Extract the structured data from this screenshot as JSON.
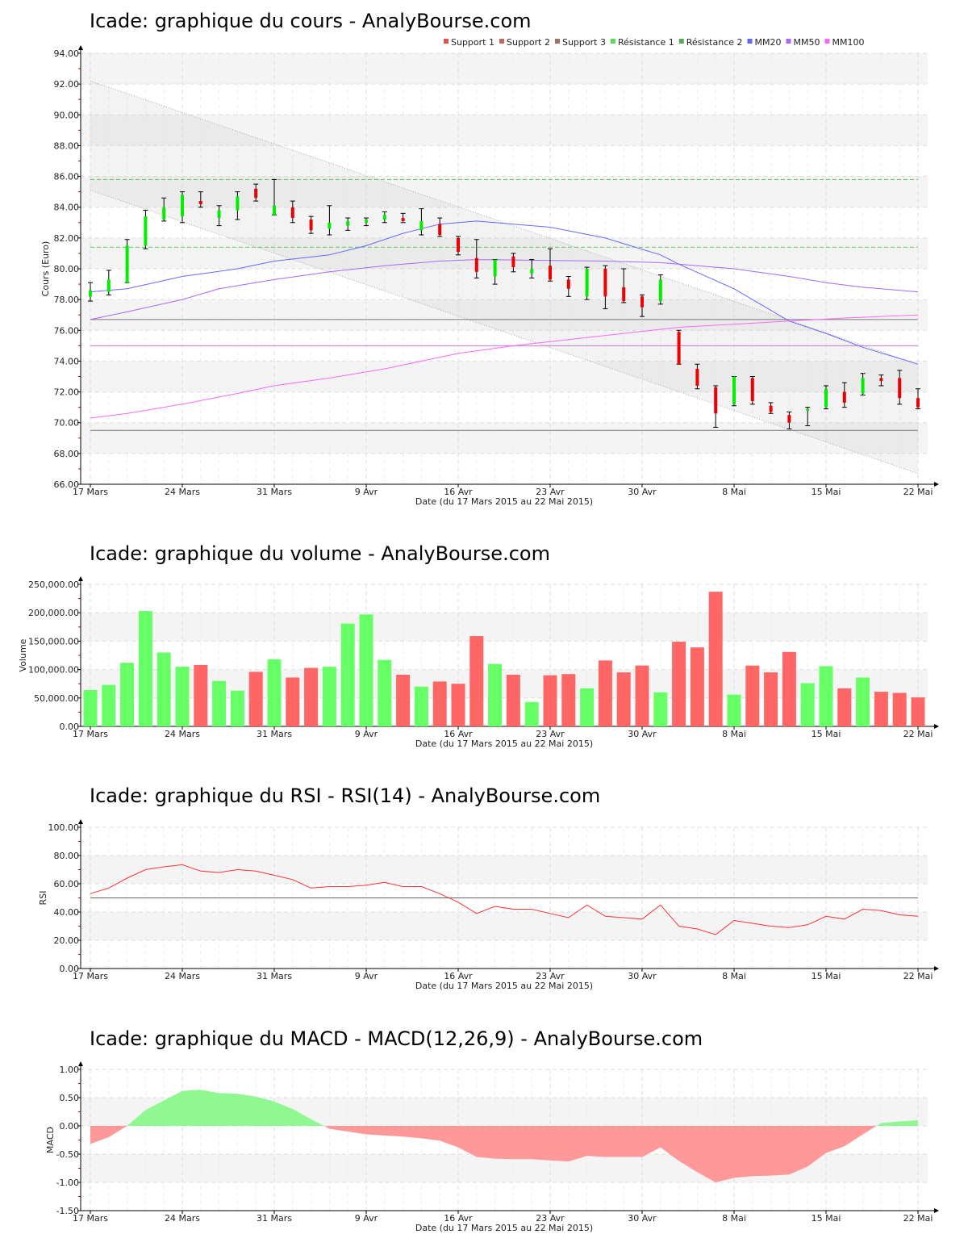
{
  "chart_data": [
    {
      "type": "candlestick",
      "title": "Icade: graphique du cours - AnalyBourse.com",
      "ylabel": "Cours (Euro)",
      "xlabel": "Date (du 17 Mars 2015 au 22 Mai 2015)",
      "ylim": [
        66,
        94
      ],
      "yticks": [
        "66.00",
        "68.00",
        "70.00",
        "72.00",
        "74.00",
        "76.00",
        "78.00",
        "80.00",
        "82.00",
        "84.00",
        "86.00",
        "88.00",
        "90.00",
        "92.00",
        "94.00"
      ],
      "legend_position": "top-right",
      "legend": [
        {
          "name": "Support 1",
          "color": "#d9534f"
        },
        {
          "name": "Support 2",
          "color": "#c0665f"
        },
        {
          "name": "Support 3",
          "color": "#a0706a"
        },
        {
          "name": "Résistance 1",
          "color": "#55dd55"
        },
        {
          "name": "Résistance 2",
          "color": "#55aa55"
        },
        {
          "name": "MM20",
          "color": "#6666ff"
        },
        {
          "name": "MM50",
          "color": "#aa66ff"
        },
        {
          "name": "MM100",
          "color": "#ff66ff"
        }
      ],
      "levels": {
        "support1": 69.5,
        "support2": 75.0,
        "support3": 76.7,
        "resistance1": 81.4,
        "resistance2": 85.8
      },
      "channel": {
        "upper": [
          92.2,
          73.8
        ],
        "lower": [
          85.1,
          66.7
        ]
      },
      "ohlc": [
        [
          78.2,
          78.6,
          79.1,
          77.9
        ],
        [
          78.5,
          79.3,
          79.9,
          78.3
        ],
        [
          79.1,
          81.5,
          81.9,
          79.1
        ],
        [
          81.5,
          83.4,
          83.8,
          81.3
        ],
        [
          83.2,
          84.0,
          84.6,
          83.1
        ],
        [
          83.4,
          84.8,
          85.0,
          83.0
        ],
        [
          84.4,
          84.2,
          85.0,
          84.0
        ],
        [
          83.3,
          83.8,
          84.1,
          82.8
        ],
        [
          83.8,
          84.7,
          85.0,
          83.2
        ],
        [
          85.2,
          84.6,
          85.5,
          84.4
        ],
        [
          83.5,
          84.1,
          85.8,
          83.5
        ],
        [
          84.0,
          83.3,
          84.4,
          83.0
        ],
        [
          83.2,
          82.5,
          83.4,
          82.3
        ],
        [
          82.6,
          83.0,
          84.1,
          82.2
        ],
        [
          82.8,
          83.1,
          83.3,
          82.5
        ],
        [
          83.0,
          83.2,
          83.3,
          82.8
        ],
        [
          83.2,
          83.5,
          83.7,
          83.0
        ],
        [
          83.3,
          83.1,
          83.6,
          83.0
        ],
        [
          82.5,
          83.1,
          83.9,
          82.2
        ],
        [
          82.9,
          82.2,
          83.3,
          82.1
        ],
        [
          82.0,
          81.1,
          82.1,
          80.9
        ],
        [
          80.7,
          79.8,
          81.9,
          79.4
        ],
        [
          79.5,
          80.6,
          80.6,
          79.0
        ],
        [
          80.8,
          80.1,
          81.0,
          79.8
        ],
        [
          79.7,
          80.0,
          80.6,
          79.4
        ],
        [
          80.2,
          79.3,
          81.3,
          79.2
        ],
        [
          79.3,
          78.7,
          79.5,
          78.2
        ],
        [
          78.2,
          80.0,
          80.1,
          78.0
        ],
        [
          80.0,
          78.2,
          80.2,
          77.4
        ],
        [
          78.8,
          77.9,
          80.0,
          77.8
        ],
        [
          78.2,
          77.5,
          78.3,
          76.9
        ],
        [
          77.9,
          79.3,
          79.6,
          77.7
        ],
        [
          75.9,
          73.8,
          76.0,
          73.8
        ],
        [
          73.5,
          72.4,
          73.8,
          72.2
        ],
        [
          72.3,
          70.6,
          72.4,
          69.7
        ],
        [
          71.2,
          73.0,
          73.0,
          71.1
        ],
        [
          72.9,
          71.4,
          73.0,
          71.2
        ],
        [
          71.1,
          70.7,
          71.3,
          70.6
        ],
        [
          70.5,
          70.0,
          70.7,
          69.6
        ],
        [
          70.8,
          70.9,
          71.0,
          69.8
        ],
        [
          71.0,
          72.2,
          72.4,
          70.9
        ],
        [
          72.0,
          71.3,
          72.6,
          71.0
        ],
        [
          71.9,
          72.9,
          73.2,
          71.8
        ],
        [
          72.9,
          72.7,
          73.1,
          72.4
        ],
        [
          72.9,
          71.6,
          73.4,
          71.2
        ],
        [
          71.6,
          71.0,
          72.2,
          70.9
        ]
      ],
      "mm20": [
        [
          0,
          78.5
        ],
        [
          2,
          78.7
        ],
        [
          5,
          79.5
        ],
        [
          8,
          80.0
        ],
        [
          10,
          80.5
        ],
        [
          13,
          80.9
        ],
        [
          15,
          81.5
        ],
        [
          17,
          82.3
        ],
        [
          19,
          82.9
        ],
        [
          21,
          83.1
        ],
        [
          25,
          82.7
        ],
        [
          28,
          82.0
        ],
        [
          31,
          80.9
        ],
        [
          32,
          80.3
        ],
        [
          35,
          78.7
        ],
        [
          38,
          76.6
        ],
        [
          40,
          75.8
        ],
        [
          42,
          74.9
        ],
        [
          45,
          73.8
        ]
      ],
      "mm50": [
        [
          0,
          76.7
        ],
        [
          2,
          77.2
        ],
        [
          5,
          78.0
        ],
        [
          7,
          78.7
        ],
        [
          10,
          79.3
        ],
        [
          13,
          79.8
        ],
        [
          16,
          80.2
        ],
        [
          19,
          80.5
        ],
        [
          21,
          80.6
        ],
        [
          28,
          80.5
        ],
        [
          31,
          80.4
        ],
        [
          35,
          80.0
        ],
        [
          38,
          79.5
        ],
        [
          40,
          79.1
        ],
        [
          42,
          78.8
        ],
        [
          45,
          78.5
        ]
      ],
      "mm100": [
        [
          0,
          70.3
        ],
        [
          2,
          70.6
        ],
        [
          5,
          71.2
        ],
        [
          8,
          71.9
        ],
        [
          10,
          72.4
        ],
        [
          13,
          72.9
        ],
        [
          16,
          73.5
        ],
        [
          18,
          74.0
        ],
        [
          20,
          74.5
        ],
        [
          23,
          75.0
        ],
        [
          26,
          75.4
        ],
        [
          29,
          75.8
        ],
        [
          32,
          76.2
        ],
        [
          35,
          76.4
        ],
        [
          38,
          76.6
        ],
        [
          41,
          76.8
        ],
        [
          45,
          77.0
        ]
      ]
    },
    {
      "type": "bar",
      "title": "Icade: graphique du volume - AnalyBourse.com",
      "ylabel": "Volume",
      "xlabel": "Date (du 17 Mars 2015 au 22 Mai 2015)",
      "ylim": [
        0,
        250000
      ],
      "yticks": [
        "0.00",
        "50,000.00",
        "100,000.00",
        "150,000.00",
        "200,000.00",
        "250,000.00"
      ],
      "values": [
        64000,
        73000,
        112000,
        203000,
        130000,
        105000,
        108000,
        80000,
        63000,
        96000,
        118000,
        86000,
        103000,
        105000,
        181000,
        197000,
        117000,
        91000,
        70000,
        79000,
        75000,
        159000,
        110000,
        91000,
        43000,
        90000,
        92000,
        67000,
        116000,
        95000,
        107000,
        60000,
        149000,
        139000,
        237000,
        56000,
        107000,
        95000,
        131000,
        76000,
        106000,
        67000,
        86000,
        61000,
        59000,
        51000
      ],
      "up": [
        1,
        1,
        1,
        1,
        1,
        1,
        0,
        1,
        1,
        0,
        1,
        0,
        0,
        1,
        1,
        1,
        1,
        0,
        1,
        0,
        0,
        0,
        1,
        0,
        1,
        0,
        0,
        1,
        0,
        0,
        0,
        1,
        0,
        0,
        0,
        1,
        0,
        0,
        0,
        1,
        1,
        0,
        1,
        0,
        0,
        0
      ],
      "colors": {
        "up": "#66ff66",
        "down": "#ff6666"
      }
    },
    {
      "type": "line",
      "title": "Icade: graphique du RSI - RSI(14) - AnalyBourse.com",
      "ylabel": "RSI",
      "xlabel": "Date (du 17 Mars 2015 au 22 Mai 2015)",
      "ylim": [
        0,
        100
      ],
      "yticks": [
        "0.00",
        "20.00",
        "40.00",
        "60.00",
        "80.00",
        "100.00"
      ],
      "reference": 50,
      "values": [
        53,
        57,
        64,
        70,
        72,
        73.5,
        69,
        68,
        70,
        69,
        66,
        63,
        57,
        58,
        58,
        59,
        61,
        58,
        58,
        53,
        47,
        39,
        44,
        42,
        42,
        39,
        36,
        45,
        37,
        36,
        35,
        45,
        30,
        28,
        24,
        34,
        32,
        30,
        29,
        31,
        37,
        35,
        42,
        41,
        38,
        37
      ]
    },
    {
      "type": "area",
      "title": "Icade: graphique du MACD - MACD(12,26,9) - AnalyBourse.com",
      "ylabel": "MACD",
      "xlabel": "Date (du 17 Mars 2015 au 22 Mai 2015)",
      "ylim": [
        -1.5,
        1.0
      ],
      "yticks": [
        "-1.50",
        "-1.00",
        "-0.50",
        "0.00",
        "0.50",
        "1.00"
      ],
      "values": [
        -0.32,
        -0.2,
        0.0,
        0.28,
        0.45,
        0.62,
        0.64,
        0.58,
        0.57,
        0.52,
        0.43,
        0.3,
        0.12,
        -0.05,
        -0.1,
        -0.15,
        -0.17,
        -0.19,
        -0.22,
        -0.26,
        -0.38,
        -0.55,
        -0.58,
        -0.59,
        -0.59,
        -0.61,
        -0.63,
        -0.53,
        -0.55,
        -0.55,
        -0.55,
        -0.38,
        -0.62,
        -0.82,
        -1.0,
        -0.92,
        -0.89,
        -0.88,
        -0.86,
        -0.72,
        -0.48,
        -0.36,
        -0.15,
        0.05,
        0.08,
        0.1
      ],
      "colors": {
        "positive": "#90f890",
        "negative": "#ff9999"
      }
    }
  ],
  "xaxis": {
    "days": 46,
    "tick_days": [
      0,
      5,
      10,
      15,
      20,
      25,
      30,
      35,
      40,
      45
    ],
    "tick_labels": [
      "17 Mars",
      "24 Mars",
      "31 Mars",
      "9 Avr",
      "16 Avr",
      "23 Avr",
      "30 Avr",
      "8 Mai",
      "15 Mai",
      "22 Mai"
    ]
  }
}
